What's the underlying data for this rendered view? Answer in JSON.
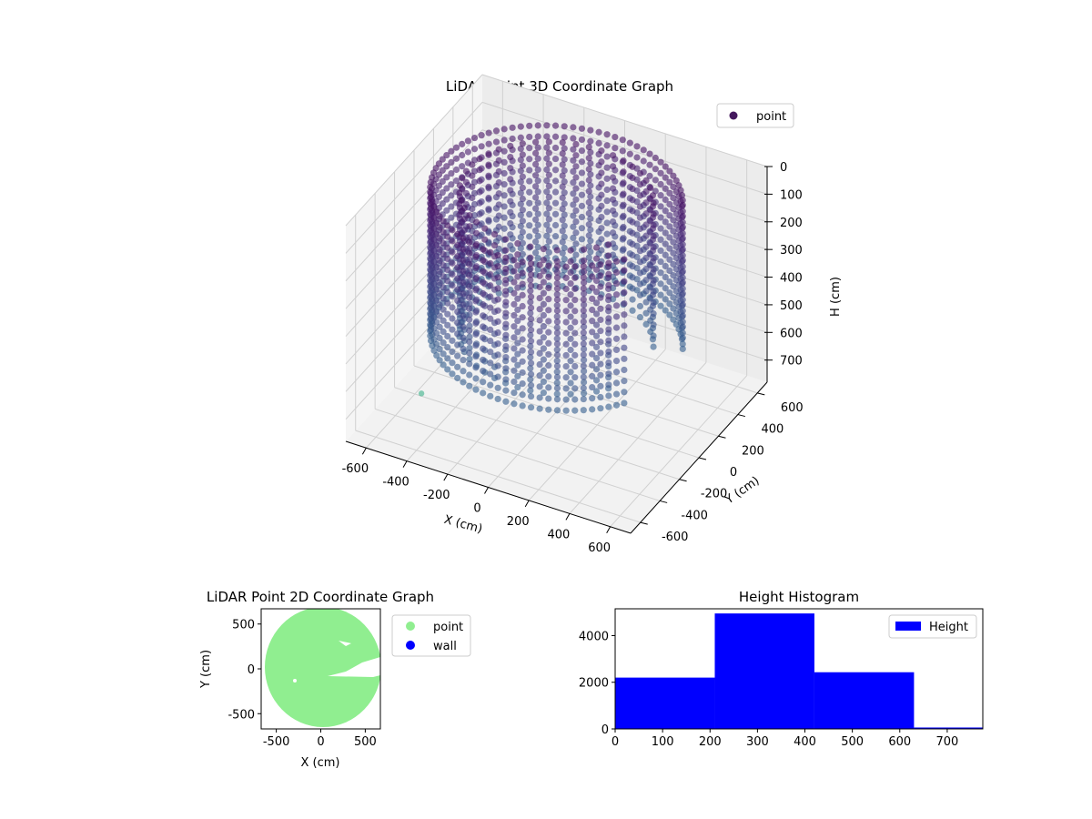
{
  "chart_data": [
    {
      "type": "scatter",
      "title": "LiDAR Point 3D Coordinate Graph",
      "projection": "3d",
      "xlabel": "X (cm)",
      "ylabel": "Y (cm)",
      "zlabel": "H (cm)",
      "xlim": [
        -700,
        700
      ],
      "ylim": [
        -700,
        700
      ],
      "zlim": [
        780,
        0
      ],
      "z_inverted": true,
      "xticks": [
        -600,
        -400,
        -200,
        0,
        200,
        400,
        600
      ],
      "yticks": [
        -600,
        -400,
        -200,
        0,
        200,
        400,
        600
      ],
      "zticks": [
        0,
        100,
        200,
        300,
        400,
        500,
        600,
        700
      ],
      "legend": [
        "point"
      ],
      "legend_position": "top-right",
      "grid": true,
      "colormap": "viridis",
      "series": [
        {
          "name": "point",
          "shape": "ring",
          "ring_outer_radius": 560,
          "ring_inner_radius": 430,
          "height_range": [
            0,
            520
          ],
          "open_sector_deg": [
            330,
            380
          ]
        }
      ],
      "outlier_points": [
        [
          -520,
          -300,
          720
        ]
      ]
    },
    {
      "type": "scatter",
      "title": "LiDAR Point 2D Coordinate Graph",
      "xlabel": "X (cm)",
      "ylabel": "Y (cm)",
      "xlim": [
        -670,
        670
      ],
      "ylim": [
        -670,
        670
      ],
      "xticks": [
        -500,
        0,
        500
      ],
      "yticks": [
        -500,
        0,
        500
      ],
      "legend": [
        "point",
        "wall"
      ],
      "legend_position": "outside-right",
      "series": [
        {
          "name": "point",
          "color": "#90ee90",
          "shape": "disc",
          "radius": 600
        },
        {
          "name": "wall",
          "color": "#0000ff",
          "shape": "none"
        }
      ]
    },
    {
      "type": "bar",
      "title": "Height Histogram",
      "legend": [
        "Height"
      ],
      "legend_position": "top-right",
      "color": "#0000ff",
      "xlim": [
        0,
        775
      ],
      "ylim": [
        0,
        5150
      ],
      "xticks": [
        0,
        100,
        200,
        300,
        400,
        500,
        600,
        700
      ],
      "yticks": [
        0,
        2000,
        4000
      ],
      "series": [
        {
          "name": "Height",
          "bin_edges": [
            0,
            210,
            420,
            630,
            840
          ],
          "values": [
            2200,
            4950,
            2430,
            60
          ]
        }
      ]
    }
  ]
}
